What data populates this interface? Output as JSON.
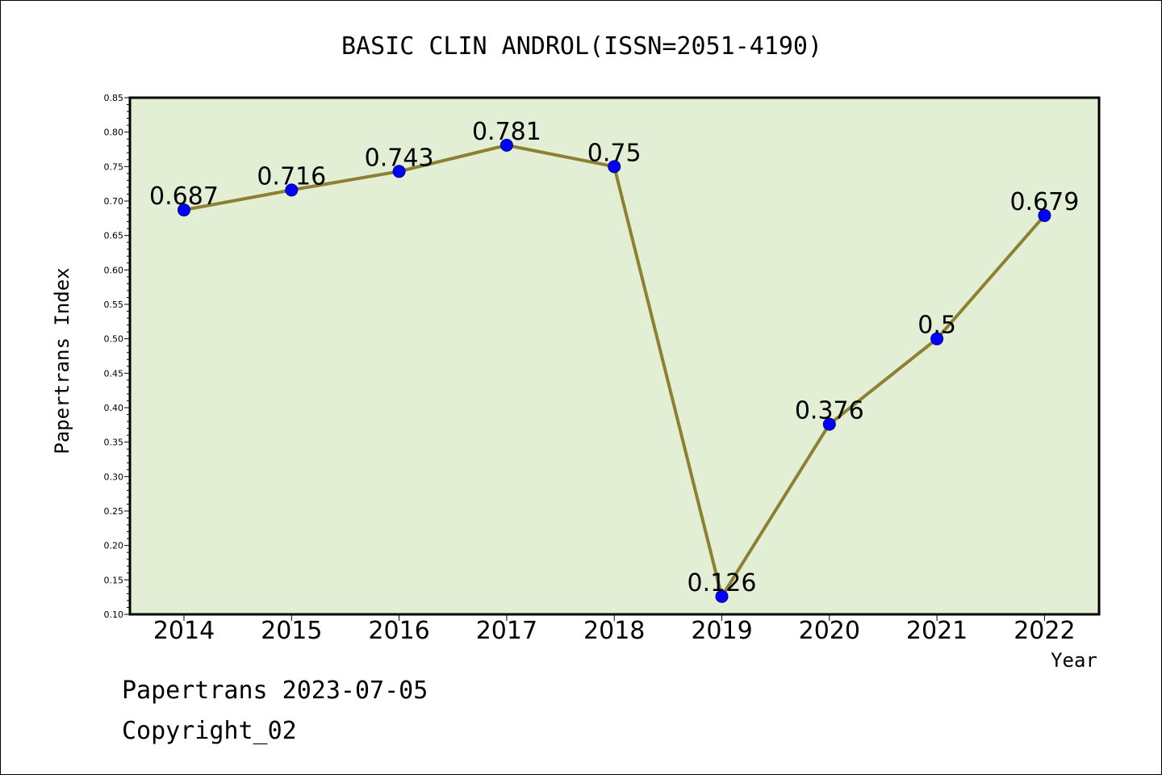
{
  "chart_data": {
    "type": "line",
    "title": "BASIC CLIN ANDROL(ISSN=2051-4190)",
    "xlabel": "Year",
    "ylabel": "Papertrans Index",
    "categories": [
      "2014",
      "2015",
      "2016",
      "2017",
      "2018",
      "2019",
      "2020",
      "2021",
      "2022"
    ],
    "values": [
      0.687,
      0.716,
      0.743,
      0.781,
      0.75,
      0.126,
      0.376,
      0.5,
      0.679
    ],
    "data_labels": [
      "0.687",
      "0.716",
      "0.743",
      "0.781",
      "0.75",
      "0.126",
      "0.376",
      "0.5",
      "0.679"
    ],
    "ylim": [
      0.1,
      0.85
    ],
    "yticks": [
      "0.10",
      "0.15",
      "0.20",
      "0.25",
      "0.30",
      "0.35",
      "0.40",
      "0.45",
      "0.50",
      "0.55",
      "0.60",
      "0.65",
      "0.70",
      "0.75",
      "0.80",
      "0.85"
    ],
    "grid": false,
    "legend": "none",
    "colors": {
      "plot_background": "#e2efd5",
      "line": "#8c8032",
      "marker": "#0000ff",
      "axes": "#000000"
    }
  },
  "footer": {
    "date_line": "Papertrans 2023-07-05",
    "copyright": "Copyright_02"
  }
}
